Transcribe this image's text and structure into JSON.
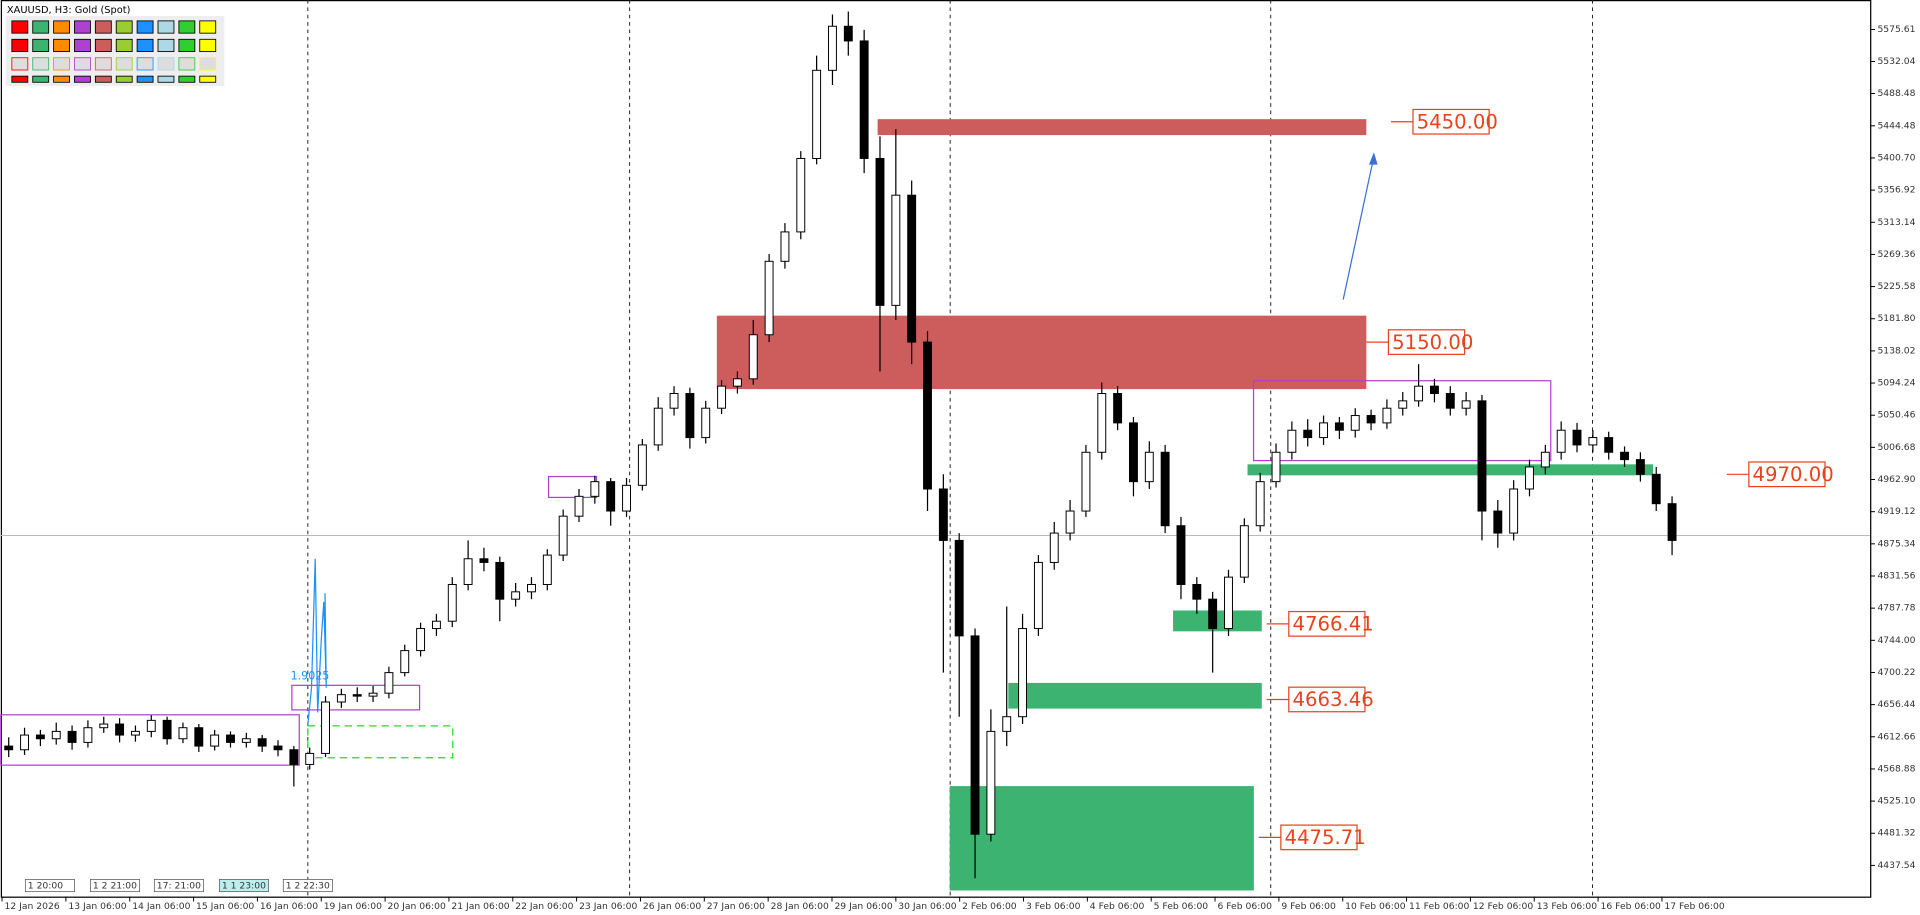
{
  "chart_data": {
    "type": "candlestick",
    "title": "XAUUSD, H3:  Gold (Spot)",
    "annotation": "1.9025",
    "time_markers": [
      "1 20:00",
      "1 2 21:00",
      "17: 21:00",
      "1 1 23:00",
      "1 2 22:30"
    ],
    "up_color": "#ffffff",
    "down_color": "#000000",
    "ylim": [
      4395.1,
      5615.74
    ],
    "yticks": [
      {
        "value": 5575.61,
        "label": "5575.61"
      },
      {
        "value": 5532.04,
        "label": "5532.04"
      },
      {
        "value": 5488.48,
        "label": "5488.48"
      },
      {
        "value": 5444.48,
        "label": "5444.48"
      },
      {
        "value": 5400.7,
        "label": "5400.70"
      },
      5356.92,
      5313.14,
      5269.36,
      5225.58,
      {
        "value": 5181.8,
        "label": "5181.80"
      },
      5138.02,
      5094.24,
      5050.46,
      5006.68,
      {
        "value": 4962.9,
        "label": "4962.90"
      },
      4919.12,
      4875.34,
      4831.56,
      4787.78,
      {
        "value": 4744,
        "label": "4744.00"
      },
      4700.22,
      4656.44,
      4612.66,
      4568.88,
      {
        "value": 4525.1,
        "label": "4525.10"
      },
      4481.32,
      4437.54
    ],
    "xlim": [
      -0.5,
      117.5
    ],
    "xticks": [
      {
        "value": -0.42,
        "label": "12 Jan 2026"
      },
      {
        "value": 3.61,
        "label": "13 Jan 06:00"
      },
      {
        "value": 7.64,
        "label": "14 Jan 06:00"
      },
      {
        "value": 11.67,
        "label": "15 Jan 06:00"
      },
      {
        "value": 15.7,
        "label": "16 Jan 06:00"
      },
      {
        "value": 19.73,
        "label": "19 Jan 06:00"
      },
      {
        "value": 23.76,
        "label": "20 Jan 06:00"
      },
      {
        "value": 27.79,
        "label": "21 Jan 06:00"
      },
      {
        "value": 31.82,
        "label": "22 Jan 06:00"
      },
      {
        "value": 35.85,
        "label": "23 Jan 06:00"
      },
      {
        "value": 39.88,
        "label": "26 Jan 06:00"
      },
      {
        "value": 43.91,
        "label": "27 Jan 06:00"
      },
      {
        "value": 47.94,
        "label": "28 Jan 06:00"
      },
      {
        "value": 51.97,
        "label": "29 Jan 06:00"
      },
      {
        "value": 56,
        "label": "30 Jan 06:00"
      },
      {
        "value": 60.03,
        "label": "2 Feb 06:00"
      },
      {
        "value": 64.06,
        "label": "3 Feb 06:00"
      },
      {
        "value": 68.09,
        "label": "4 Feb 06:00"
      },
      {
        "value": 72.12,
        "label": "5 Feb 06:00"
      },
      {
        "value": 76.15,
        "label": "6 Feb 06:00"
      },
      {
        "value": 80.18,
        "label": "9 Feb 06:00"
      },
      {
        "value": 84.21,
        "label": "10 Feb 06:00"
      },
      {
        "value": 88.24,
        "label": "11 Feb 06:00"
      },
      {
        "value": 92.27,
        "label": "12 Feb 06:00"
      },
      {
        "value": 96.3,
        "label": "13 Feb 06:00"
      },
      {
        "value": 100.33,
        "label": "16 Feb 06:00"
      },
      {
        "value": 104.36,
        "label": "17 Feb 06:00"
      }
    ],
    "ohlc": [
      [
        4600,
        4612,
        4585,
        4595
      ],
      [
        4595,
        4625,
        4588,
        4615
      ],
      [
        4615,
        4622,
        4600,
        4610
      ],
      [
        4610,
        4632,
        4602,
        4620
      ],
      [
        4620,
        4628,
        4595,
        4605
      ],
      [
        4605,
        4635,
        4598,
        4625
      ],
      [
        4625,
        4640,
        4618,
        4630
      ],
      [
        4630,
        4638,
        4605,
        4615
      ],
      [
        4615,
        4628,
        4606,
        4620
      ],
      [
        4620,
        4642,
        4612,
        4635
      ],
      [
        4635,
        4640,
        4602,
        4610
      ],
      [
        4610,
        4632,
        4604,
        4625
      ],
      [
        4625,
        4630,
        4592,
        4600
      ],
      [
        4600,
        4622,
        4594,
        4615
      ],
      [
        4615,
        4620,
        4598,
        4605
      ],
      [
        4605,
        4618,
        4598,
        4610
      ],
      [
        4610,
        4615,
        4592,
        4600
      ],
      [
        4600,
        4608,
        4586,
        4595
      ],
      [
        4595,
        4600,
        4545,
        4575
      ],
      [
        4575,
        4598,
        4568,
        4590
      ],
      [
        4590,
        4668,
        4585,
        4660
      ],
      [
        4660,
        4678,
        4652,
        4670
      ],
      [
        4670,
        4680,
        4660,
        4668
      ],
      [
        4668,
        4682,
        4660,
        4672
      ],
      [
        4672,
        4708,
        4665,
        4700
      ],
      [
        4700,
        4738,
        4695,
        4730
      ],
      [
        4730,
        4768,
        4722,
        4760
      ],
      [
        4760,
        4780,
        4750,
        4770
      ],
      [
        4770,
        4830,
        4762,
        4820
      ],
      [
        4820,
        4880,
        4812,
        4855
      ],
      [
        4855,
        4870,
        4838,
        4850
      ],
      [
        4850,
        4858,
        4770,
        4800
      ],
      [
        4800,
        4822,
        4790,
        4810
      ],
      [
        4810,
        4830,
        4800,
        4820
      ],
      [
        4820,
        4868,
        4812,
        4860
      ],
      [
        4860,
        4922,
        4852,
        4913
      ],
      [
        4913,
        4950,
        4905,
        4940
      ],
      [
        4940,
        4968,
        4930,
        4960
      ],
      [
        4960,
        4965,
        4900,
        4920
      ],
      [
        4920,
        4965,
        4912,
        4955
      ],
      [
        4955,
        5018,
        4948,
        5010
      ],
      [
        5010,
        5075,
        5002,
        5060
      ],
      [
        5060,
        5090,
        5050,
        5080
      ],
      [
        5080,
        5088,
        5005,
        5020
      ],
      [
        5020,
        5070,
        5012,
        5060
      ],
      [
        5060,
        5098,
        5052,
        5090
      ],
      [
        5090,
        5110,
        5080,
        5100
      ],
      [
        5100,
        5180,
        5092,
        5160
      ],
      [
        5160,
        5270,
        5150,
        5260
      ],
      [
        5260,
        5312,
        5250,
        5300
      ],
      [
        5300,
        5410,
        5290,
        5400
      ],
      [
        5400,
        5540,
        5392,
        5520
      ],
      [
        5520,
        5596,
        5500,
        5580
      ],
      [
        5580,
        5600,
        5540,
        5560
      ],
      [
        5560,
        5575,
        5380,
        5400
      ],
      [
        5400,
        5430,
        5110,
        5200
      ],
      [
        5200,
        5440,
        5180,
        5350
      ],
      [
        5350,
        5370,
        5120,
        5150
      ],
      [
        5150,
        5165,
        4920,
        4950
      ],
      [
        4950,
        4970,
        4700,
        4880
      ],
      [
        4880,
        4890,
        4640,
        4750
      ],
      [
        4750,
        4760,
        4420,
        4480
      ],
      [
        4480,
        4650,
        4470,
        4620
      ],
      [
        4620,
        4790,
        4600,
        4640
      ],
      [
        4640,
        4780,
        4630,
        4760
      ],
      [
        4760,
        4860,
        4750,
        4850
      ],
      [
        4850,
        4905,
        4840,
        4890
      ],
      [
        4890,
        4935,
        4880,
        4920
      ],
      [
        4920,
        5010,
        4912,
        5000
      ],
      [
        5000,
        5095,
        4990,
        5080
      ],
      [
        5080,
        5090,
        5030,
        5040
      ],
      [
        5040,
        5048,
        4940,
        4960
      ],
      [
        4960,
        5015,
        4950,
        5000
      ],
      [
        5000,
        5010,
        4890,
        4900
      ],
      [
        4900,
        4912,
        4800,
        4820
      ],
      [
        4820,
        4830,
        4780,
        4800
      ],
      [
        4800,
        4810,
        4700,
        4760
      ],
      [
        4760,
        4840,
        4750,
        4830
      ],
      [
        4830,
        4910,
        4822,
        4900
      ],
      [
        4900,
        4972,
        4892,
        4960
      ],
      [
        4960,
        5012,
        4952,
        5000
      ],
      [
        5000,
        5042,
        4990,
        5030
      ],
      [
        5030,
        5045,
        5008,
        5020
      ],
      [
        5020,
        5050,
        5010,
        5040
      ],
      [
        5040,
        5048,
        5018,
        5030
      ],
      [
        5030,
        5060,
        5020,
        5050
      ],
      [
        5050,
        5058,
        5030,
        5040
      ],
      [
        5040,
        5072,
        5032,
        5060
      ],
      [
        5060,
        5082,
        5050,
        5070
      ],
      [
        5070,
        5120,
        5062,
        5090
      ],
      [
        5090,
        5100,
        5068,
        5080
      ],
      [
        5080,
        5090,
        5050,
        5060
      ],
      [
        5060,
        5082,
        5050,
        5070
      ],
      [
        5070,
        5078,
        4880,
        4920
      ],
      [
        4920,
        4935,
        4870,
        4890
      ],
      [
        4890,
        4962,
        4880,
        4950
      ],
      [
        4950,
        4990,
        4940,
        4980
      ],
      [
        4980,
        5010,
        4970,
        5000
      ],
      [
        5000,
        5042,
        4990,
        5030
      ],
      [
        5030,
        5040,
        5000,
        5010
      ],
      [
        5010,
        5030,
        5000,
        5020
      ],
      [
        5020,
        5028,
        4990,
        5000
      ],
      [
        5000,
        5008,
        4980,
        4990
      ],
      [
        4990,
        5000,
        4960,
        4970
      ],
      [
        4970,
        4980,
        4920,
        4930
      ],
      [
        4930,
        4940,
        4860,
        4880
      ]
    ],
    "zones": [
      {
        "y": [
          5431.8,
          5453.5
        ],
        "x": [
          54.85,
          85.7
        ],
        "color": "#cd5c5c",
        "label": {
          "value": 5450,
          "label": "5450.00"
        }
      },
      {
        "y": [
          5086,
          5186
        ],
        "x": [
          44.7,
          85.7
        ],
        "color": "#cd5c5c",
        "label": {
          "value": 5150,
          "label": "5150.00"
        }
      },
      {
        "y": [
          4968.6,
          4983.6
        ],
        "x": [
          78.2,
          103.8
        ],
        "color": "#3cb371",
        "label": {
          "value": 4970,
          "label": "4970.00"
        }
      },
      {
        "y": [
          4756.2,
          4784.6
        ],
        "x": [
          73.5,
          79.1
        ],
        "color": "#3cb371",
        "label": {
          "value": 4766.41,
          "label": "4766.41"
        }
      },
      {
        "y": [
          4651,
          4686
        ],
        "x": [
          63.1,
          79.1
        ],
        "color": "#3cb371",
        "label": {
          "value": 4663.46,
          "label": "4663.46"
        }
      },
      {
        "y": [
          4403.4,
          4545.5
        ],
        "x": [
          59.4,
          78.6
        ],
        "color": "#3cb371",
        "label": {
          "value": 4475.71,
          "label": "4475.71"
        }
      }
    ]
  }
}
